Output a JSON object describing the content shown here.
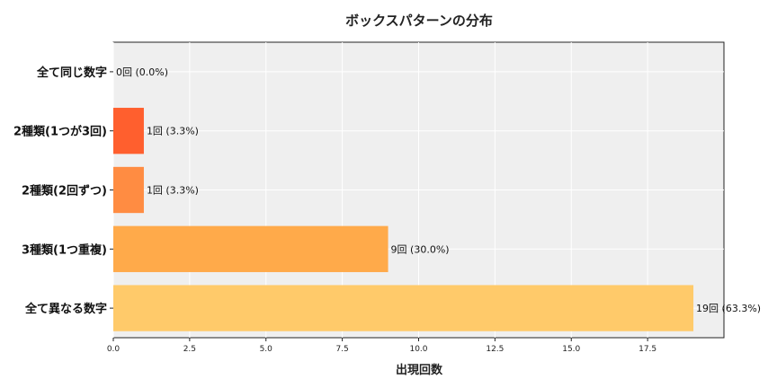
{
  "chart_data": {
    "type": "bar",
    "orientation": "horizontal",
    "title": "ボックスパターンの分布",
    "xlabel": "出現回数",
    "ylabel": "",
    "xlim": [
      0,
      20
    ],
    "xticks": [
      "0.0",
      "2.5",
      "5.0",
      "7.5",
      "10.0",
      "12.5",
      "15.0",
      "17.5"
    ],
    "grid": true,
    "categories": [
      "全て同じ数字",
      "2種類(1つが3回)",
      "2種類(2回ずつ)",
      "3種類(1つ重複)",
      "全て異なる数字"
    ],
    "values": [
      0,
      1,
      1,
      9,
      19
    ],
    "data_labels": [
      "0回 (0.0%)",
      "1回 (3.3%)",
      "1回 (3.3%)",
      "9回 (30.0%)",
      "19回 (63.3%)"
    ],
    "colors": [
      "#e6553a",
      "#ff5f2e",
      "#ff8c42",
      "#ffaa4a",
      "#ffca6a"
    ],
    "plot_background": "#efefef"
  }
}
